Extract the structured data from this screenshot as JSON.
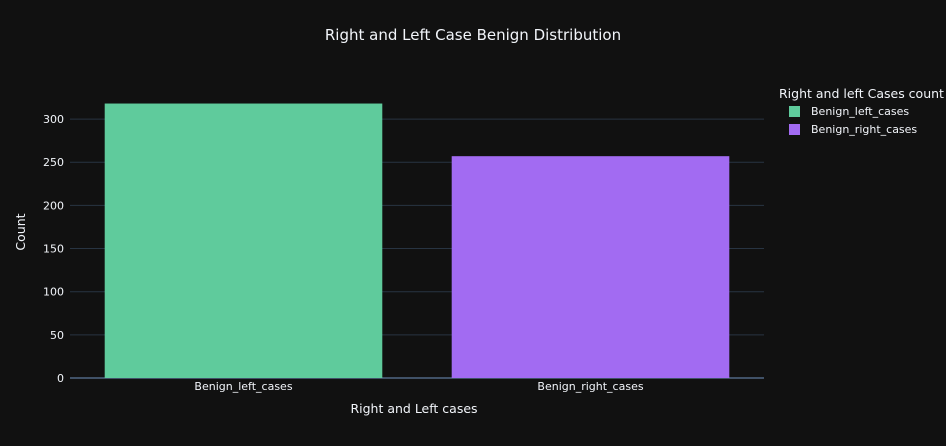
{
  "chart_data": {
    "type": "bar",
    "title": "Right and Left Case Benign Distribution",
    "xlabel": "Right and Left cases",
    "ylabel": "Count",
    "categories": [
      "Benign_left_cases",
      "Benign_right_cases"
    ],
    "values": [
      318,
      257
    ],
    "colors": [
      "#5fcb9c",
      "#a26bf2"
    ],
    "ylim": [
      0,
      336
    ],
    "yticks": [
      0,
      50,
      100,
      150,
      200,
      250,
      300
    ],
    "grid": true,
    "legend": {
      "title": "Right and left Cases count",
      "placement": "top-right",
      "entries": [
        "Benign_left_cases",
        "Benign_right_cases"
      ]
    },
    "background": "#111111",
    "gridline_color": "#283442",
    "text_color": "#f2f5fa"
  }
}
